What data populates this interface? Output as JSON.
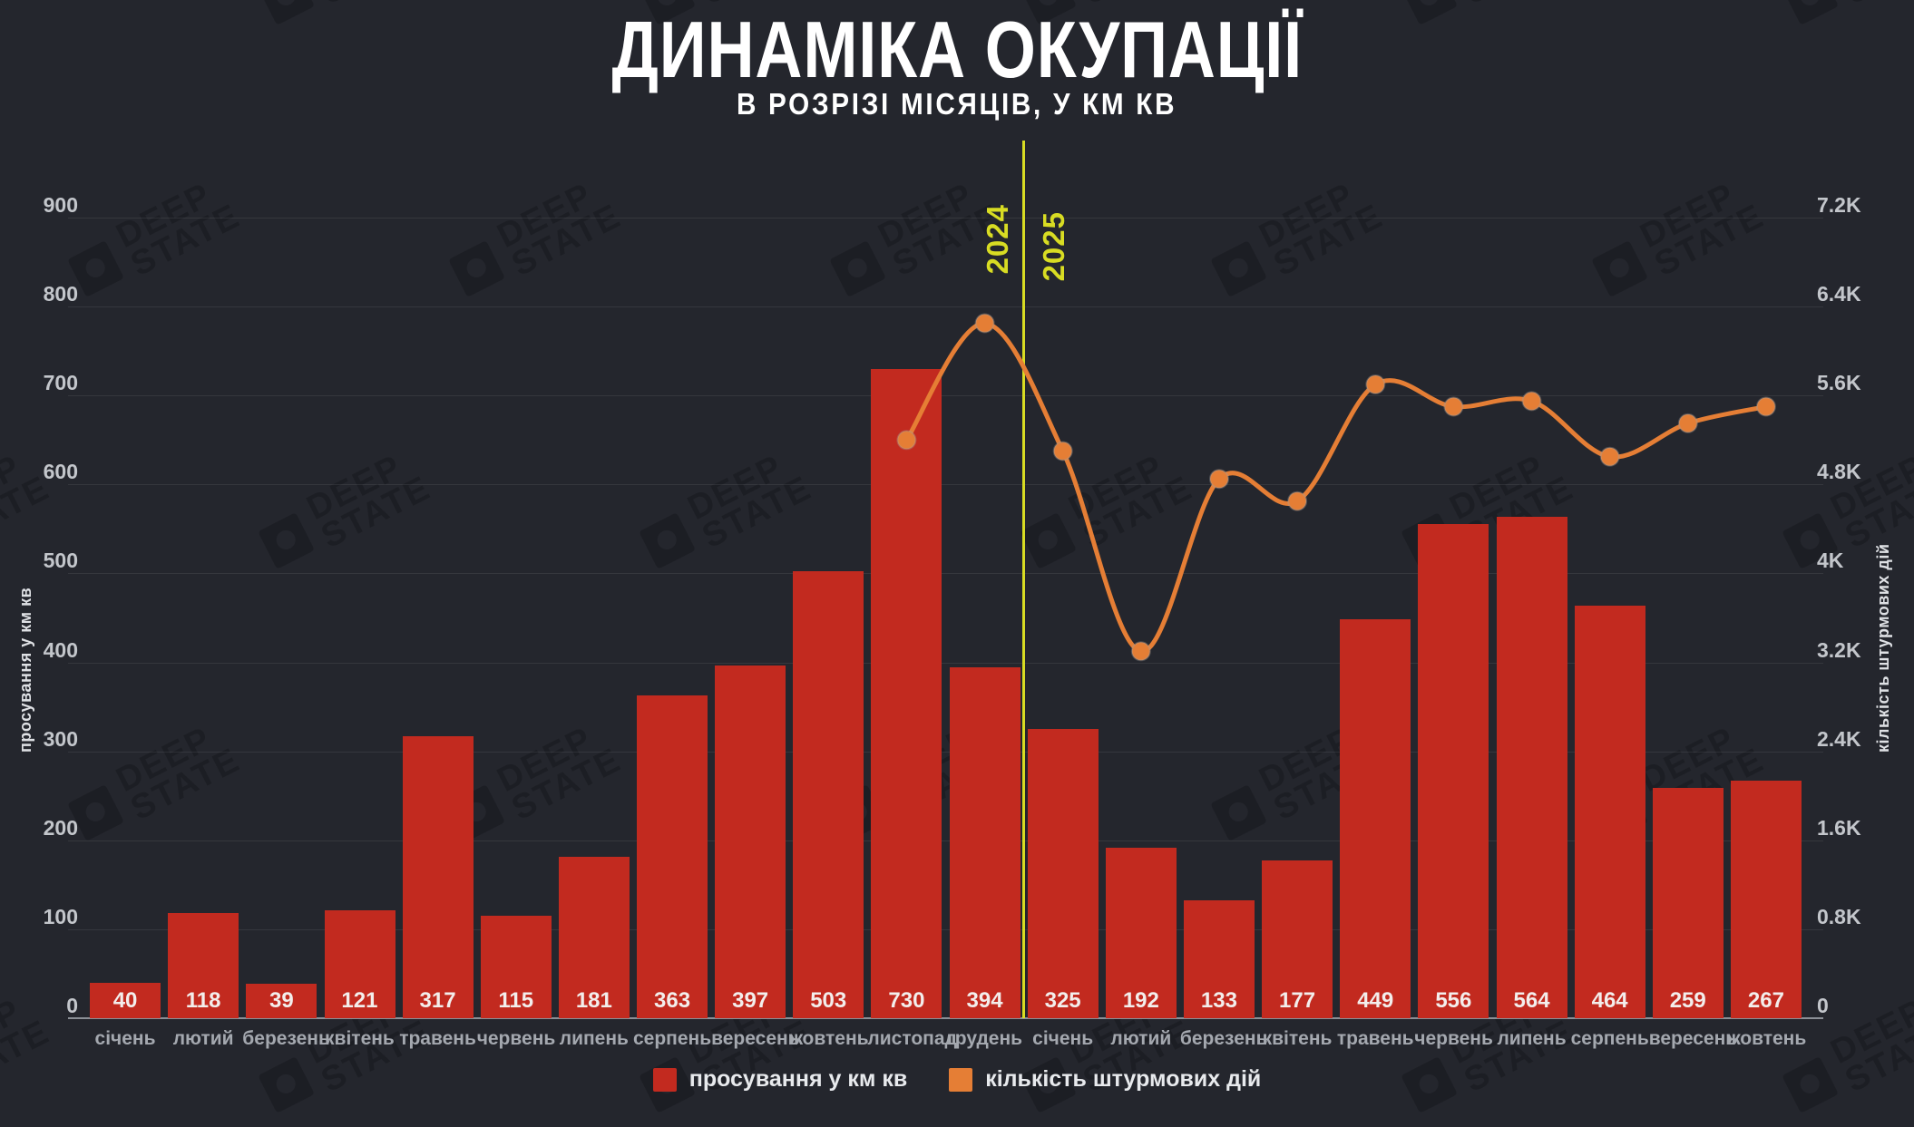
{
  "page": {
    "background": "#24262d",
    "watermark_lines": [
      "DEEP",
      "STATE"
    ]
  },
  "header": {
    "title": "ДИНАМІКА ОКУПАЦІЇ",
    "subtitle": "В РОЗРІЗІ МІСЯЦІВ, У КМ КВ"
  },
  "legend": [
    {
      "label": "просування у км кв",
      "color": "#c22a1f"
    },
    {
      "label": "кількість штурмових дій",
      "color": "#e57e35"
    }
  ],
  "chart_data": {
    "type": "bar",
    "title": "ДИНАМІКА ОКУПАЦІЇ",
    "subtitle": "В РОЗРІЗІ МІСЯЦІВ, У КМ КВ",
    "categories": [
      "січень",
      "лютий",
      "березень",
      "квітень",
      "травень",
      "червень",
      "липень",
      "серпень",
      "вересень",
      "жовтень",
      "листопад",
      "грудень",
      "січень",
      "лютий",
      "березень",
      "квітень",
      "травень",
      "червень",
      "липень",
      "серпень",
      "вересень",
      "жовтень"
    ],
    "series": [
      {
        "name": "просування у км кв",
        "type": "bar",
        "axis": "left",
        "color": "#c22a1f",
        "values": [
          40,
          118,
          39,
          121,
          317,
          115,
          181,
          363,
          397,
          503,
          730,
          394,
          325,
          192,
          133,
          177,
          449,
          556,
          564,
          464,
          259,
          267
        ]
      },
      {
        "name": "кількість штурмових дій",
        "type": "line",
        "axis": "right",
        "color": "#e57e35",
        "values": [
          null,
          null,
          null,
          null,
          null,
          null,
          null,
          null,
          null,
          null,
          5200,
          6250,
          5100,
          3300,
          4850,
          4650,
          5700,
          5500,
          5550,
          5050,
          5350,
          5500
        ]
      }
    ],
    "left_axis": {
      "label": "просування у км кв",
      "min": 0,
      "max": 900,
      "tick_step": 100,
      "ticks": [
        "0",
        "100",
        "200",
        "300",
        "400",
        "500",
        "600",
        "700",
        "800",
        "900"
      ]
    },
    "right_axis": {
      "label": "кількість штурмових дій",
      "min": 0,
      "max": 7200,
      "tick_step": 800,
      "ticks": [
        "0",
        "0.8K",
        "1.6K",
        "2.4K",
        "3.2K",
        "4K",
        "4.8K",
        "5.6K",
        "6.4K",
        "7.2K"
      ]
    },
    "year_divider": {
      "after_index": 11,
      "left_label": "2024",
      "right_label": "2025",
      "color": "#d8dc23"
    },
    "grid": true,
    "legend_position": "bottom"
  }
}
